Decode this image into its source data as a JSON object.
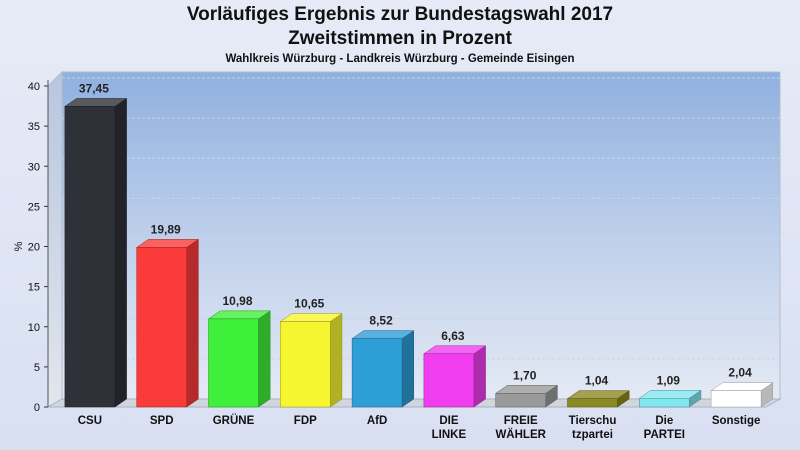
{
  "header": {
    "title": "Vorläufiges Ergebnis zur Bundestagswahl 2017",
    "subtitle": "Zweitstimmen in Prozent",
    "location": "Wahlkreis Würzburg - Landkreis Würzburg - Gemeinde Eisingen"
  },
  "chart_data": {
    "type": "bar",
    "title": "Vorläufiges Ergebnis zur Bundestagswahl 2017",
    "subtitle": "Zweitstimmen in Prozent",
    "ylabel": "%",
    "xlabel": "",
    "ylim": [
      0,
      40
    ],
    "yticks": [
      0,
      5,
      10,
      15,
      20,
      25,
      30,
      35,
      40
    ],
    "grid": true,
    "categories": [
      [
        "CSU"
      ],
      [
        "SPD"
      ],
      [
        "GRÜNE"
      ],
      [
        "FDP"
      ],
      [
        "AfD"
      ],
      [
        "DIE",
        "LINKE"
      ],
      [
        "FREIE",
        "WÄHLER"
      ],
      [
        "Tierschu",
        "tzpartei"
      ],
      [
        "Die",
        "PARTEI"
      ],
      [
        "Sonstige"
      ]
    ],
    "values": [
      37.45,
      19.89,
      10.98,
      10.65,
      8.52,
      6.63,
      1.7,
      1.04,
      1.09,
      2.04
    ],
    "labels": [
      "37,45",
      "19,89",
      "10,98",
      "10,65",
      "8,52",
      "6,63",
      "1,70",
      "1,04",
      "1,09",
      "2,04"
    ],
    "colors": [
      "#2e3138",
      "#fb3a3a",
      "#3ef03a",
      "#f6f630",
      "#2e9ed6",
      "#ef3def",
      "#9a9a9a",
      "#8c8a22",
      "#82e6ef",
      "#ffffff"
    ]
  }
}
